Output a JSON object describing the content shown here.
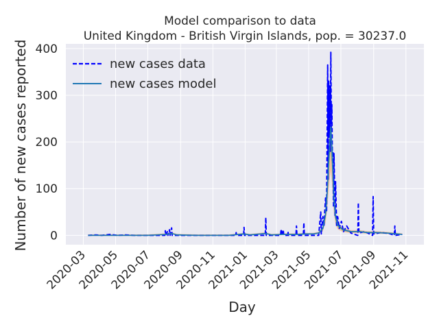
{
  "chart_data": {
    "type": "line",
    "title": "Model comparison to data",
    "subtitle": "United Kingdom - British Virgin Islands, pop. = 30237.0",
    "xlabel": "Day",
    "ylabel": "Number of new cases reported",
    "x_ticks": [
      "2020-03",
      "2020-05",
      "2020-07",
      "2020-09",
      "2020-11",
      "2021-01",
      "2021-03",
      "2021-05",
      "2021-07",
      "2021-09",
      "2021-11"
    ],
    "y_ticks": [
      "0",
      "100",
      "200",
      "300",
      "400"
    ],
    "xlim": [
      "2020-01-28",
      "2021-12-05"
    ],
    "ylim": [
      -20,
      410
    ],
    "grid": true,
    "legend_position": "top-left",
    "colors": {
      "background": "#eaeaf2",
      "grid": "#ffffff",
      "data": "#0000ff",
      "model": "#1f77b4",
      "band_outer": "#f5a25c",
      "band_inner": "#8fbf6a"
    },
    "series": [
      {
        "name": "new cases data",
        "style": "dashed",
        "points": [
          [
            "2020-03-10",
            0
          ],
          [
            "2020-03-25",
            1
          ],
          [
            "2020-04-05",
            0
          ],
          [
            "2020-04-20",
            2
          ],
          [
            "2020-05-05",
            0
          ],
          [
            "2020-05-20",
            1
          ],
          [
            "2020-06-05",
            0
          ],
          [
            "2020-06-25",
            0
          ],
          [
            "2020-07-20",
            0
          ],
          [
            "2020-08-02",
            0
          ],
          [
            "2020-08-03",
            10
          ],
          [
            "2020-08-04",
            0
          ],
          [
            "2020-08-07",
            8
          ],
          [
            "2020-08-08",
            0
          ],
          [
            "2020-08-11",
            12
          ],
          [
            "2020-08-12",
            0
          ],
          [
            "2020-08-15",
            16
          ],
          [
            "2020-08-16",
            0
          ],
          [
            "2020-09-10",
            0
          ],
          [
            "2020-10-15",
            0
          ],
          [
            "2020-11-20",
            0
          ],
          [
            "2020-12-14",
            0
          ],
          [
            "2020-12-15",
            6
          ],
          [
            "2020-12-16",
            0
          ],
          [
            "2020-12-29",
            0
          ],
          [
            "2020-12-30",
            17
          ],
          [
            "2020-12-31",
            0
          ],
          [
            "2021-02-08",
            0
          ],
          [
            "2021-02-09",
            38
          ],
          [
            "2021-02-10",
            0
          ],
          [
            "2021-03-09",
            0
          ],
          [
            "2021-03-10",
            13
          ],
          [
            "2021-03-11",
            0
          ],
          [
            "2021-03-14",
            12
          ],
          [
            "2021-03-15",
            0
          ],
          [
            "2021-03-22",
            0
          ],
          [
            "2021-03-23",
            8
          ],
          [
            "2021-03-24",
            0
          ],
          [
            "2021-04-07",
            0
          ],
          [
            "2021-04-08",
            20
          ],
          [
            "2021-04-09",
            0
          ],
          [
            "2021-04-21",
            0
          ],
          [
            "2021-04-22",
            27
          ],
          [
            "2021-04-23",
            0
          ],
          [
            "2021-05-20",
            0
          ],
          [
            "2021-05-24",
            50
          ],
          [
            "2021-05-25",
            3
          ],
          [
            "2021-05-28",
            40
          ],
          [
            "2021-05-30",
            20
          ],
          [
            "2021-06-02",
            80
          ],
          [
            "2021-06-04",
            50
          ],
          [
            "2021-06-06",
            365
          ],
          [
            "2021-06-07",
            120
          ],
          [
            "2021-06-08",
            330
          ],
          [
            "2021-06-09",
            210
          ],
          [
            "2021-06-10",
            320
          ],
          [
            "2021-06-11",
            180
          ],
          [
            "2021-06-12",
            392
          ],
          [
            "2021-06-13",
            230
          ],
          [
            "2021-06-14",
            280
          ],
          [
            "2021-06-15",
            160
          ],
          [
            "2021-06-16",
            180
          ],
          [
            "2021-06-17",
            60
          ],
          [
            "2021-06-18",
            175
          ],
          [
            "2021-06-20",
            40
          ],
          [
            "2021-06-21",
            115
          ],
          [
            "2021-06-23",
            20
          ],
          [
            "2021-06-25",
            40
          ],
          [
            "2021-06-28",
            15
          ],
          [
            "2021-07-02",
            30
          ],
          [
            "2021-07-06",
            8
          ],
          [
            "2021-07-12",
            20
          ],
          [
            "2021-07-20",
            5
          ],
          [
            "2021-08-02",
            0
          ],
          [
            "2021-08-03",
            70
          ],
          [
            "2021-08-04",
            5
          ],
          [
            "2021-08-15",
            8
          ],
          [
            "2021-08-30",
            0
          ],
          [
            "2021-08-31",
            83
          ],
          [
            "2021-09-01",
            3
          ],
          [
            "2021-09-15",
            6
          ],
          [
            "2021-09-30",
            4
          ],
          [
            "2021-10-10",
            0
          ],
          [
            "2021-10-11",
            20
          ],
          [
            "2021-10-12",
            0
          ],
          [
            "2021-10-25",
            2
          ]
        ]
      },
      {
        "name": "new cases model",
        "style": "solid",
        "points": [
          [
            "2020-03-10",
            0
          ],
          [
            "2020-05-01",
            0
          ],
          [
            "2020-07-01",
            0
          ],
          [
            "2020-08-05",
            2
          ],
          [
            "2020-08-15",
            4
          ],
          [
            "2020-08-25",
            1
          ],
          [
            "2020-10-01",
            0
          ],
          [
            "2020-12-01",
            0
          ],
          [
            "2020-12-30",
            3
          ],
          [
            "2021-01-10",
            1
          ],
          [
            "2021-02-09",
            4
          ],
          [
            "2021-02-20",
            1
          ],
          [
            "2021-03-15",
            2
          ],
          [
            "2021-04-10",
            2
          ],
          [
            "2021-04-25",
            3
          ],
          [
            "2021-05-10",
            3
          ],
          [
            "2021-05-20",
            5
          ],
          [
            "2021-05-28",
            15
          ],
          [
            "2021-06-02",
            45
          ],
          [
            "2021-06-05",
            90
          ],
          [
            "2021-06-08",
            160
          ],
          [
            "2021-06-10",
            200
          ],
          [
            "2021-06-12",
            232
          ],
          [
            "2021-06-14",
            190
          ],
          [
            "2021-06-16",
            130
          ],
          [
            "2021-06-18",
            75
          ],
          [
            "2021-06-21",
            40
          ],
          [
            "2021-06-25",
            22
          ],
          [
            "2021-07-05",
            12
          ],
          [
            "2021-07-20",
            8
          ],
          [
            "2021-08-05",
            8
          ],
          [
            "2021-08-20",
            6
          ],
          [
            "2021-09-05",
            6
          ],
          [
            "2021-09-25",
            5
          ],
          [
            "2021-10-15",
            3
          ],
          [
            "2021-10-25",
            2
          ]
        ]
      }
    ]
  }
}
